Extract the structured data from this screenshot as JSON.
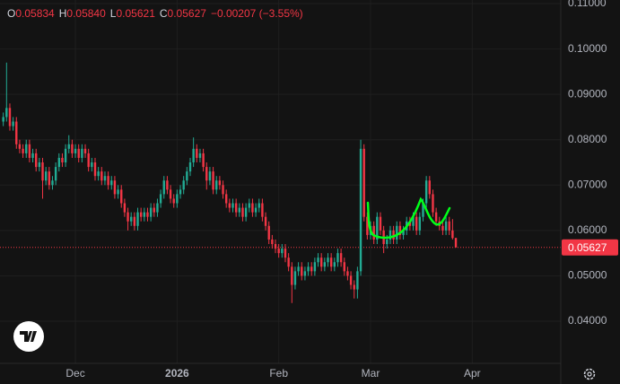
{
  "chart_data": {
    "type": "candlestick",
    "up_color": "#22ab94",
    "down_color": "#f23645",
    "readout": [
      {
        "key": "O",
        "value": "0.05834"
      },
      {
        "key": "H",
        "value": "0.05840"
      },
      {
        "key": "L",
        "value": "0.05621"
      },
      {
        "key": "C",
        "value": "0.05627"
      }
    ],
    "change": "−0.00207 (−3.55%)",
    "last_price": {
      "value": 0.05627,
      "label": "0.05627"
    },
    "xlim": [
      -1,
      170
    ],
    "xticks": [
      {
        "value": 22,
        "label": "Dec"
      },
      {
        "value": 53,
        "label": "2026"
      },
      {
        "value": 84,
        "label": "Feb"
      },
      {
        "value": 112,
        "label": "Mar"
      },
      {
        "value": 143,
        "label": "Apr"
      }
    ],
    "ylim": [
      0.0307,
      0.1108
    ],
    "yticks": [
      {
        "value": 0.04,
        "label": "0.04000"
      },
      {
        "value": 0.05,
        "label": "0.05000"
      },
      {
        "value": 0.06,
        "label": "0.06000"
      },
      {
        "value": 0.07,
        "label": "0.07000"
      },
      {
        "value": 0.08,
        "label": "0.08000"
      },
      {
        "value": 0.09,
        "label": "0.09000"
      },
      {
        "value": 0.1,
        "label": "0.10000"
      },
      {
        "value": 0.11,
        "label": "0.11000"
      }
    ],
    "grid": true,
    "ohlc": [
      [
        0.084,
        0.086,
        0.083,
        0.085
      ],
      [
        0.085,
        0.097,
        0.084,
        0.087
      ],
      [
        0.087,
        0.088,
        0.082,
        0.083
      ],
      [
        0.083,
        0.085,
        0.082,
        0.084
      ],
      [
        0.084,
        0.085,
        0.078,
        0.079
      ],
      [
        0.079,
        0.08,
        0.077,
        0.078
      ],
      [
        0.078,
        0.079,
        0.076,
        0.077
      ],
      [
        0.077,
        0.08,
        0.076,
        0.079
      ],
      [
        0.079,
        0.08,
        0.075,
        0.076
      ],
      [
        0.076,
        0.078,
        0.075,
        0.077
      ],
      [
        0.077,
        0.078,
        0.073,
        0.074
      ],
      [
        0.074,
        0.076,
        0.073,
        0.075
      ],
      [
        0.075,
        0.076,
        0.067,
        0.071
      ],
      [
        0.071,
        0.074,
        0.07,
        0.073
      ],
      [
        0.073,
        0.074,
        0.069,
        0.07
      ],
      [
        0.07,
        0.072,
        0.069,
        0.071
      ],
      [
        0.071,
        0.075,
        0.07,
        0.074
      ],
      [
        0.074,
        0.077,
        0.073,
        0.076
      ],
      [
        0.076,
        0.077,
        0.074,
        0.075
      ],
      [
        0.075,
        0.079,
        0.074,
        0.078
      ],
      [
        0.078,
        0.081,
        0.077,
        0.079
      ],
      [
        0.079,
        0.08,
        0.076,
        0.077
      ],
      [
        0.077,
        0.079,
        0.076,
        0.078
      ],
      [
        0.078,
        0.079,
        0.075,
        0.076
      ],
      [
        0.076,
        0.079,
        0.075,
        0.078
      ],
      [
        0.078,
        0.079,
        0.076,
        0.077
      ],
      [
        0.077,
        0.078,
        0.073,
        0.074
      ],
      [
        0.074,
        0.076,
        0.073,
        0.075
      ],
      [
        0.075,
        0.076,
        0.071,
        0.072
      ],
      [
        0.072,
        0.074,
        0.071,
        0.073
      ],
      [
        0.073,
        0.074,
        0.07,
        0.071
      ],
      [
        0.071,
        0.073,
        0.07,
        0.072
      ],
      [
        0.072,
        0.073,
        0.069,
        0.07
      ],
      [
        0.07,
        0.072,
        0.069,
        0.071
      ],
      [
        0.071,
        0.072,
        0.067,
        0.068
      ],
      [
        0.068,
        0.07,
        0.067,
        0.069
      ],
      [
        0.069,
        0.07,
        0.065,
        0.066
      ],
      [
        0.066,
        0.067,
        0.063,
        0.064
      ],
      [
        0.064,
        0.065,
        0.06,
        0.062
      ],
      [
        0.062,
        0.064,
        0.061,
        0.063
      ],
      [
        0.063,
        0.064,
        0.06,
        0.061
      ],
      [
        0.061,
        0.065,
        0.06,
        0.064
      ],
      [
        0.064,
        0.065,
        0.062,
        0.063
      ],
      [
        0.063,
        0.065,
        0.062,
        0.064
      ],
      [
        0.064,
        0.065,
        0.062,
        0.063
      ],
      [
        0.063,
        0.066,
        0.062,
        0.065
      ],
      [
        0.065,
        0.066,
        0.063,
        0.064
      ],
      [
        0.064,
        0.067,
        0.063,
        0.066
      ],
      [
        0.066,
        0.069,
        0.065,
        0.068
      ],
      [
        0.068,
        0.072,
        0.067,
        0.071
      ],
      [
        0.071,
        0.072,
        0.068,
        0.069
      ],
      [
        0.069,
        0.07,
        0.066,
        0.067
      ],
      [
        0.067,
        0.068,
        0.065,
        0.066
      ],
      [
        0.066,
        0.069,
        0.065,
        0.068
      ],
      [
        0.068,
        0.07,
        0.067,
        0.069
      ],
      [
        0.069,
        0.072,
        0.068,
        0.071
      ],
      [
        0.071,
        0.074,
        0.07,
        0.073
      ],
      [
        0.073,
        0.076,
        0.072,
        0.075
      ],
      [
        0.075,
        0.0805,
        0.074,
        0.078
      ],
      [
        0.078,
        0.079,
        0.075,
        0.076
      ],
      [
        0.076,
        0.078,
        0.075,
        0.077
      ],
      [
        0.077,
        0.078,
        0.073,
        0.074
      ],
      [
        0.074,
        0.075,
        0.069,
        0.071
      ],
      [
        0.071,
        0.074,
        0.07,
        0.073
      ],
      [
        0.073,
        0.074,
        0.068,
        0.069
      ],
      [
        0.069,
        0.072,
        0.068,
        0.071
      ],
      [
        0.071,
        0.072,
        0.069,
        0.07
      ],
      [
        0.07,
        0.071,
        0.067,
        0.068
      ],
      [
        0.068,
        0.069,
        0.065,
        0.066
      ],
      [
        0.066,
        0.067,
        0.064,
        0.065
      ],
      [
        0.065,
        0.067,
        0.064,
        0.066
      ],
      [
        0.066,
        0.067,
        0.063,
        0.064
      ],
      [
        0.064,
        0.066,
        0.063,
        0.065
      ],
      [
        0.065,
        0.066,
        0.062,
        0.063
      ],
      [
        0.063,
        0.066,
        0.062,
        0.065
      ],
      [
        0.065,
        0.067,
        0.064,
        0.066
      ],
      [
        0.066,
        0.067,
        0.063,
        0.064
      ],
      [
        0.064,
        0.066,
        0.063,
        0.065
      ],
      [
        0.065,
        0.067,
        0.064,
        0.066
      ],
      [
        0.066,
        0.067,
        0.062,
        0.063
      ],
      [
        0.063,
        0.064,
        0.06,
        0.061
      ],
      [
        0.061,
        0.062,
        0.057,
        0.058
      ],
      [
        0.058,
        0.059,
        0.056,
        0.057
      ],
      [
        0.057,
        0.058,
        0.055,
        0.056
      ],
      [
        0.056,
        0.057,
        0.054,
        0.055
      ],
      [
        0.055,
        0.057,
        0.054,
        0.056
      ],
      [
        0.056,
        0.057,
        0.053,
        0.054
      ],
      [
        0.054,
        0.055,
        0.051,
        0.052
      ],
      [
        0.052,
        0.053,
        0.044,
        0.048
      ],
      [
        0.048,
        0.052,
        0.047,
        0.051
      ],
      [
        0.051,
        0.053,
        0.05,
        0.052
      ],
      [
        0.052,
        0.053,
        0.049,
        0.05
      ],
      [
        0.05,
        0.052,
        0.049,
        0.051
      ],
      [
        0.051,
        0.053,
        0.05,
        0.052
      ],
      [
        0.052,
        0.053,
        0.05,
        0.051
      ],
      [
        0.051,
        0.054,
        0.05,
        0.053
      ],
      [
        0.053,
        0.055,
        0.052,
        0.054
      ],
      [
        0.054,
        0.055,
        0.051,
        0.052
      ],
      [
        0.052,
        0.054,
        0.051,
        0.053
      ],
      [
        0.053,
        0.055,
        0.052,
        0.054
      ],
      [
        0.054,
        0.055,
        0.051,
        0.052
      ],
      [
        0.052,
        0.054,
        0.051,
        0.053
      ],
      [
        0.053,
        0.056,
        0.052,
        0.055
      ],
      [
        0.055,
        0.056,
        0.052,
        0.053
      ],
      [
        0.053,
        0.054,
        0.05,
        0.051
      ],
      [
        0.051,
        0.052,
        0.049,
        0.05
      ],
      [
        0.05,
        0.051,
        0.047,
        0.048
      ],
      [
        0.048,
        0.049,
        0.045,
        0.047
      ],
      [
        0.047,
        0.052,
        0.045,
        0.051
      ],
      [
        0.051,
        0.08,
        0.05,
        0.078
      ],
      [
        0.078,
        0.079,
        0.062,
        0.063
      ],
      [
        0.063,
        0.064,
        0.058,
        0.059
      ],
      [
        0.059,
        0.062,
        0.058,
        0.061
      ],
      [
        0.061,
        0.062,
        0.057,
        0.058
      ],
      [
        0.058,
        0.064,
        0.057,
        0.063
      ],
      [
        0.063,
        0.064,
        0.059,
        0.06
      ],
      [
        0.06,
        0.061,
        0.055,
        0.057
      ],
      [
        0.057,
        0.059,
        0.056,
        0.058
      ],
      [
        0.058,
        0.061,
        0.057,
        0.06
      ],
      [
        0.06,
        0.061,
        0.057,
        0.058
      ],
      [
        0.058,
        0.062,
        0.057,
        0.061
      ],
      [
        0.061,
        0.062,
        0.058,
        0.059
      ],
      [
        0.059,
        0.061,
        0.058,
        0.06
      ],
      [
        0.06,
        0.063,
        0.059,
        0.062
      ],
      [
        0.062,
        0.063,
        0.06,
        0.061
      ],
      [
        0.061,
        0.064,
        0.06,
        0.063
      ],
      [
        0.063,
        0.064,
        0.059,
        0.06
      ],
      [
        0.06,
        0.064,
        0.059,
        0.063
      ],
      [
        0.063,
        0.067,
        0.062,
        0.066
      ],
      [
        0.066,
        0.072,
        0.065,
        0.071
      ],
      [
        0.071,
        0.072,
        0.067,
        0.068
      ],
      [
        0.068,
        0.069,
        0.063,
        0.064
      ],
      [
        0.064,
        0.065,
        0.061,
        0.062
      ],
      [
        0.062,
        0.063,
        0.06,
        0.061
      ],
      [
        0.061,
        0.062,
        0.059,
        0.06
      ],
      [
        0.06,
        0.063,
        0.059,
        0.062
      ],
      [
        0.062,
        0.063,
        0.059,
        0.06
      ],
      [
        0.06,
        0.0625,
        0.058,
        0.05834
      ],
      [
        0.05834,
        0.0584,
        0.05621,
        0.05627
      ]
    ]
  }
}
